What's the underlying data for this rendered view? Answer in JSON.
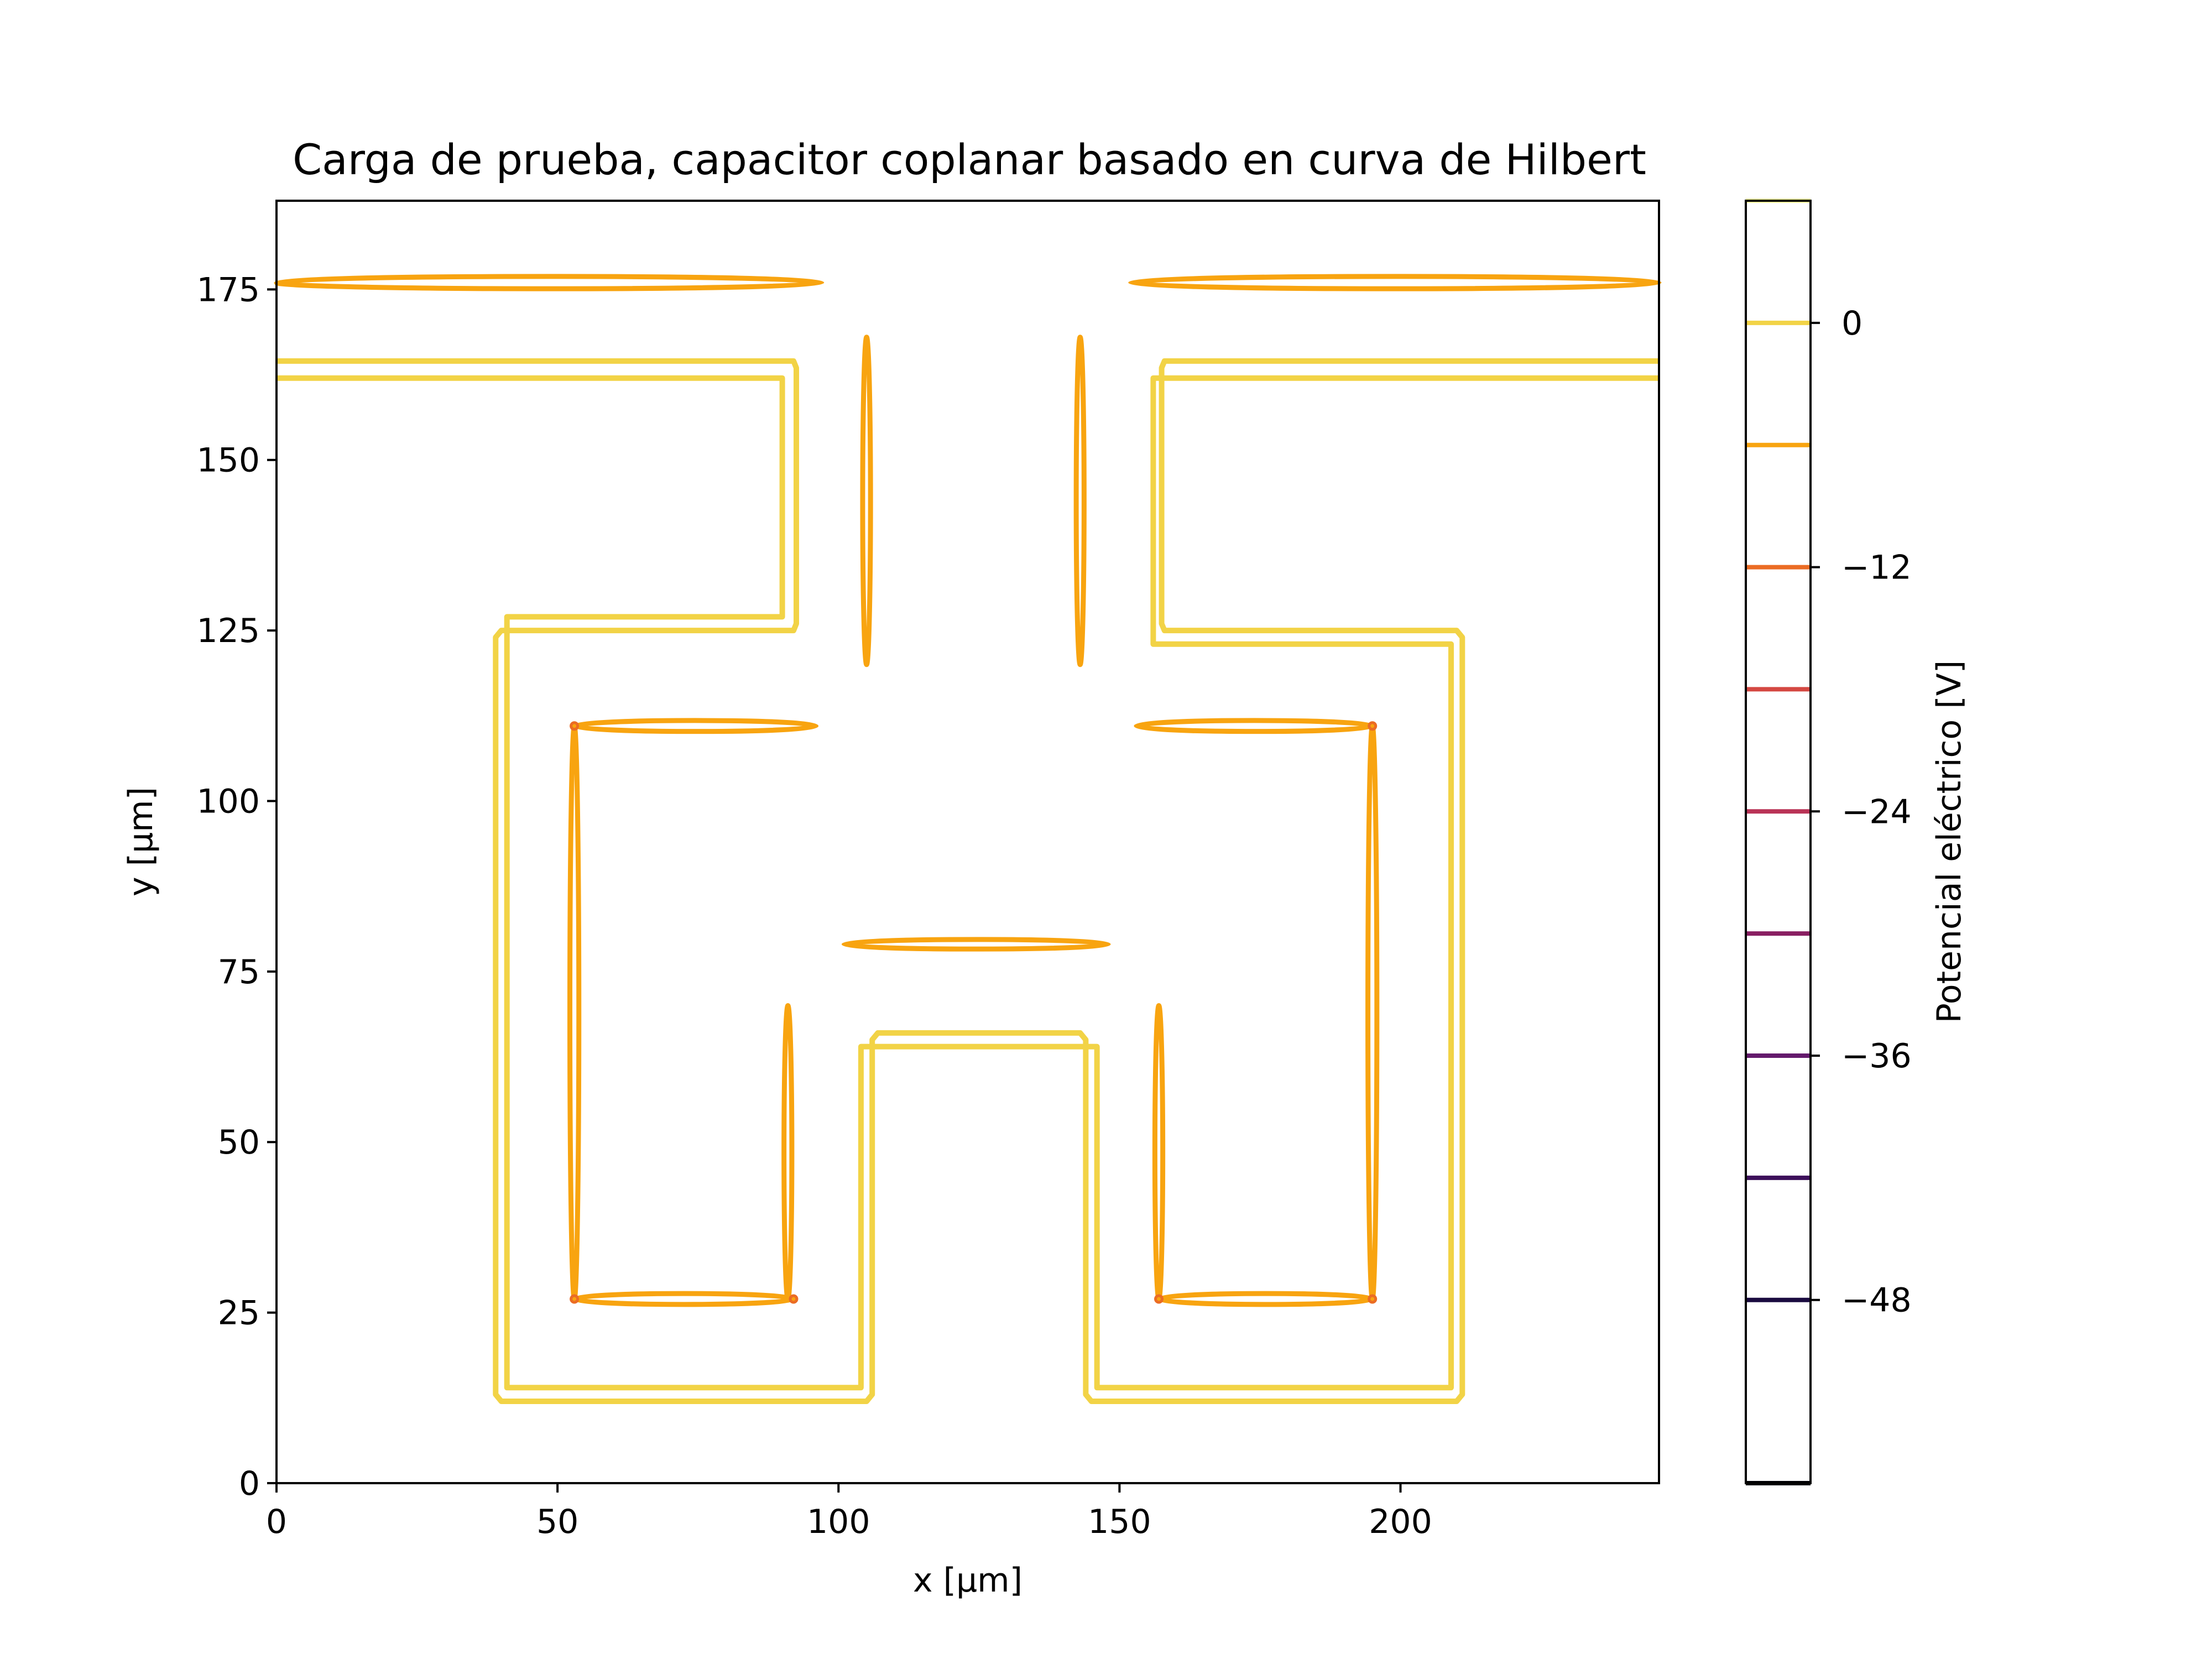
{
  "chart_data": {
    "type": "contour",
    "title": "Carga de prueba, capacitor coplanar basado en curva de Hilbert",
    "xlabel": "x [µm]",
    "ylabel": "y [µm]",
    "xlim": [
      0,
      246
    ],
    "ylim": [
      0,
      188
    ],
    "xticks": [
      0,
      50,
      100,
      150,
      200
    ],
    "xtick_labels": [
      "0",
      "50",
      "100",
      "150",
      "200"
    ],
    "yticks": [
      0,
      25,
      50,
      75,
      100,
      125,
      150,
      175
    ],
    "ytick_labels": [
      "0",
      "25",
      "50",
      "75",
      "100",
      "125",
      "150",
      "175"
    ],
    "grid": false,
    "colorbar": {
      "label": "Potencial eléctrico [V]",
      "range": [
        -57,
        6
      ],
      "ticks": [
        0,
        -12,
        -24,
        -36,
        -48
      ],
      "tick_labels": [
        "0",
        "−12",
        "−24",
        "−36",
        "−48"
      ],
      "levels": [
        {
          "value": 6,
          "color": "#fcffa4"
        },
        {
          "value": 0,
          "color": "#f2d346"
        },
        {
          "value": -6,
          "color": "#f8a410"
        },
        {
          "value": -12,
          "color": "#eb6c24"
        },
        {
          "value": -18,
          "color": "#d44842"
        },
        {
          "value": -24,
          "color": "#b93356"
        },
        {
          "value": -30,
          "color": "#891f62"
        },
        {
          "value": -36,
          "color": "#641a6c"
        },
        {
          "value": -42,
          "color": "#3c0f5a"
        },
        {
          "value": -48,
          "color": "#1a0b40"
        },
        {
          "value": -57,
          "color": "#000004"
        }
      ]
    },
    "series": [
      {
        "level": 0,
        "color": "#f2d346",
        "kind": "closed-band",
        "path_outer": [
          [
            0,
            164.5
          ],
          [
            92,
            164.5
          ],
          [
            92.5,
            163.5
          ],
          [
            92.5,
            126
          ],
          [
            92,
            125
          ],
          [
            40,
            125
          ],
          [
            39,
            124
          ],
          [
            39,
            13
          ],
          [
            40,
            12
          ],
          [
            105,
            12
          ],
          [
            106,
            13
          ],
          [
            106,
            65
          ],
          [
            107,
            66
          ],
          [
            143,
            66
          ],
          [
            144,
            65
          ],
          [
            144,
            13
          ],
          [
            145,
            12
          ],
          [
            210,
            12
          ],
          [
            211,
            13
          ],
          [
            211,
            124
          ],
          [
            210,
            125
          ],
          [
            158,
            125
          ],
          [
            157.5,
            126
          ],
          [
            157.5,
            163.5
          ],
          [
            158,
            164.5
          ],
          [
            246,
            164.5
          ]
        ],
        "path_inner": [
          [
            0,
            162
          ],
          [
            90,
            162
          ],
          [
            90,
            127
          ],
          [
            41,
            127
          ],
          [
            41,
            14
          ],
          [
            104,
            14
          ],
          [
            104,
            64
          ],
          [
            146,
            64
          ],
          [
            146,
            14
          ],
          [
            209,
            14
          ],
          [
            209,
            123
          ],
          [
            156,
            123
          ],
          [
            156,
            162
          ],
          [
            246,
            162
          ]
        ]
      },
      {
        "level": -6,
        "color": "#f8a410",
        "kind": "segments",
        "segments": [
          {
            "from": [
              0,
              176
            ],
            "to": [
              97,
              176
            ],
            "axis": "h",
            "halfwidth": 0.9
          },
          {
            "from": [
              152,
              176
            ],
            "to": [
              246,
              176
            ],
            "axis": "h",
            "halfwidth": 0.9
          },
          {
            "from": [
              105,
              120
            ],
            "to": [
              105,
              168
            ],
            "axis": "v",
            "halfwidth": 0.7
          },
          {
            "from": [
              143,
              120
            ],
            "to": [
              143,
              168
            ],
            "axis": "v",
            "halfwidth": 0.7
          },
          {
            "from": [
              53,
              111
            ],
            "to": [
              96,
              111
            ],
            "axis": "h",
            "halfwidth": 0.8
          },
          {
            "from": [
              153,
              111
            ],
            "to": [
              195,
              111
            ],
            "axis": "h",
            "halfwidth": 0.8
          },
          {
            "from": [
              53,
              27
            ],
            "to": [
              53,
              111
            ],
            "axis": "v",
            "halfwidth": 0.8
          },
          {
            "from": [
              195,
              27
            ],
            "to": [
              195,
              111
            ],
            "axis": "v",
            "halfwidth": 0.8
          },
          {
            "from": [
              53,
              27
            ],
            "to": [
              92,
              27
            ],
            "axis": "h",
            "halfwidth": 0.8
          },
          {
            "from": [
              157,
              27
            ],
            "to": [
              195,
              27
            ],
            "axis": "h",
            "halfwidth": 0.8
          },
          {
            "from": [
              91,
              27
            ],
            "to": [
              91,
              70
            ],
            "axis": "v",
            "halfwidth": 0.7
          },
          {
            "from": [
              157,
              27
            ],
            "to": [
              157,
              70
            ],
            "axis": "v",
            "halfwidth": 0.7
          },
          {
            "from": [
              101,
              79
            ],
            "to": [
              148,
              79
            ],
            "axis": "h",
            "halfwidth": 0.7
          }
        ]
      },
      {
        "level": -12,
        "color": "#eb6c24",
        "kind": "corners",
        "points": [
          [
            53,
            111
          ],
          [
            195,
            111
          ],
          [
            53,
            27
          ],
          [
            195,
            27
          ],
          [
            92,
            27
          ],
          [
            157,
            27
          ]
        ]
      }
    ]
  }
}
